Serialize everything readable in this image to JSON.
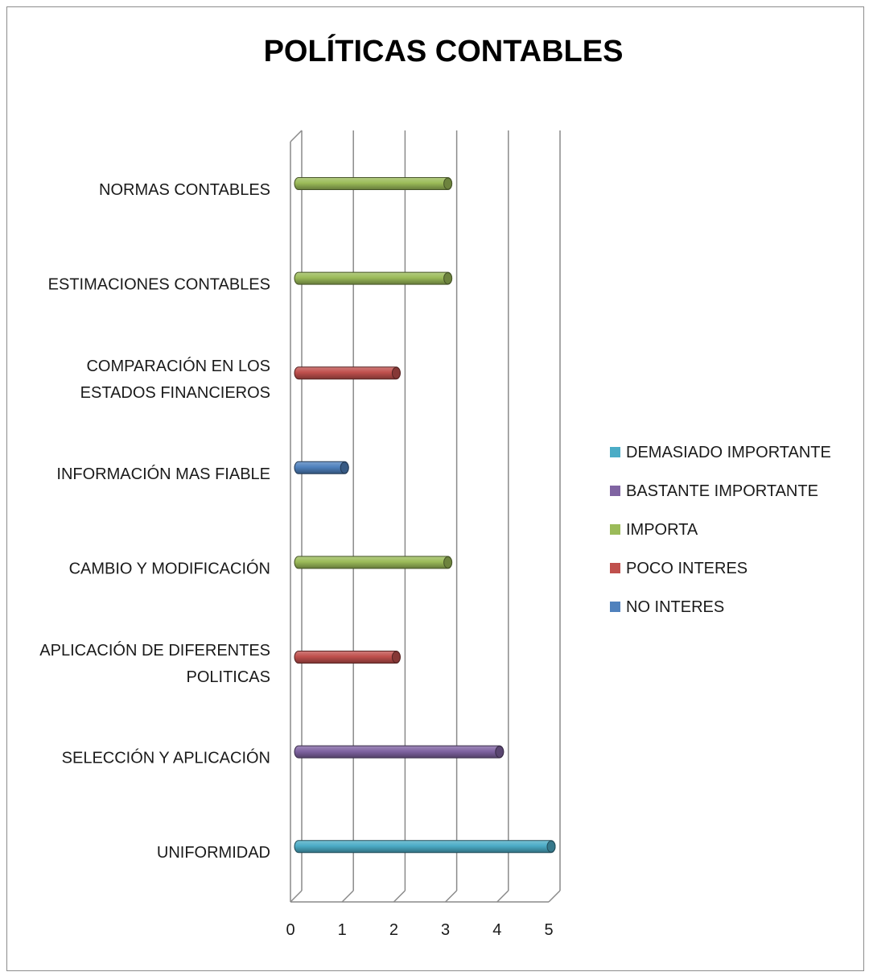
{
  "chart_data": {
    "type": "bar",
    "orientation": "horizontal",
    "title": "POLÍTICAS CONTABLES",
    "xlabel": "",
    "ylabel": "",
    "xlim": [
      0,
      5
    ],
    "x_ticks": [
      "0",
      "1",
      "2",
      "3",
      "4",
      "5"
    ],
    "grid": true,
    "legend_position": "right",
    "categories": [
      {
        "lines": [
          "NORMAS CONTABLES"
        ],
        "series": "IMPORTA",
        "value": 3
      },
      {
        "lines": [
          "ESTIMACIONES CONTABLES"
        ],
        "series": "IMPORTA",
        "value": 3
      },
      {
        "lines": [
          "COMPARACIÓN EN LOS",
          "ESTADOS FINANCIEROS"
        ],
        "series": "POCO INTERES",
        "value": 2
      },
      {
        "lines": [
          "INFORMACIÓN MAS FIABLE"
        ],
        "series": "NO INTERES",
        "value": 1
      },
      {
        "lines": [
          "CAMBIO Y MODIFICACIÓN"
        ],
        "series": "IMPORTA",
        "value": 3
      },
      {
        "lines": [
          "APLICACIÓN DE DIFERENTES",
          "POLITICAS"
        ],
        "series": "POCO INTERES",
        "value": 2
      },
      {
        "lines": [
          "SELECCIÓN Y APLICACIÓN"
        ],
        "series": "BASTANTE IMPORTANTE",
        "value": 4
      },
      {
        "lines": [
          "UNIFORMIDAD"
        ],
        "series": "DEMASIADO IMPORTANTE",
        "value": 5
      }
    ],
    "series": [
      {
        "name": "DEMASIADO IMPORTANTE",
        "color": "#4bacc6"
      },
      {
        "name": "BASTANTE IMPORTANTE",
        "color": "#8064a2"
      },
      {
        "name": "IMPORTA",
        "color": "#9bbb59"
      },
      {
        "name": "POCO INTERES",
        "color": "#c0504d"
      },
      {
        "name": "NO INTERES",
        "color": "#4f81bd"
      }
    ]
  }
}
